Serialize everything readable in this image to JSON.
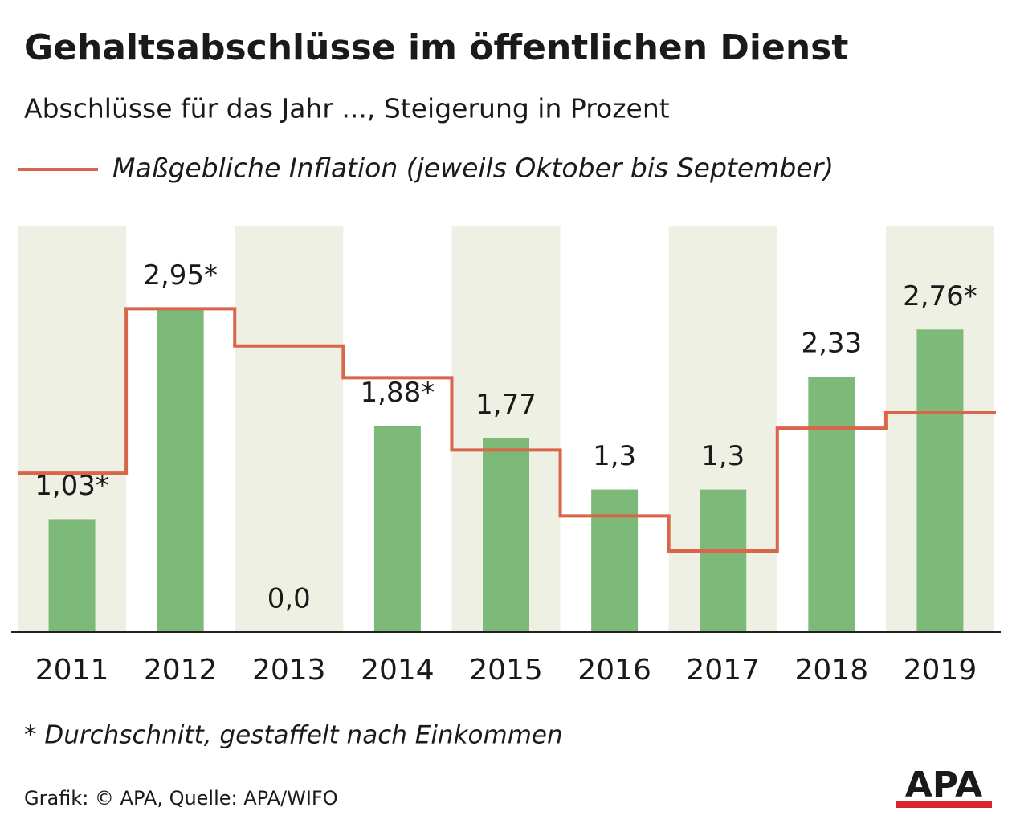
{
  "chart_data": {
    "type": "bar",
    "title": "Gehaltsabschlüsse im öffentlichen Dienst",
    "subtitle": "Abschlüsse für das Jahr ..., Steigerung in Prozent",
    "categories": [
      "2011",
      "2012",
      "2013",
      "2014",
      "2015",
      "2016",
      "2017",
      "2018",
      "2019"
    ],
    "values": [
      1.03,
      2.95,
      0.0,
      1.88,
      1.77,
      1.3,
      1.3,
      2.33,
      2.76
    ],
    "value_labels": [
      "1,03*",
      "2,95*",
      "0,0",
      "1,88*",
      "1,77",
      "1,3",
      "1,3",
      "2,33",
      "2,76*"
    ],
    "color": "#7dba7a",
    "ylim": [
      0,
      3.7
    ],
    "inflation": {
      "name": "Maßgebliche Inflation (jeweils Oktober bis September)",
      "color": "#d9654a",
      "values": [
        1.45,
        2.95,
        2.61,
        2.32,
        1.66,
        1.06,
        0.74,
        1.86,
        2.0
      ]
    }
  },
  "footnote": "* Durchschnitt, gestaffelt nach Einkommen",
  "source": "Grafik: © APA, Quelle: APA/WIFO",
  "logo": "APA"
}
